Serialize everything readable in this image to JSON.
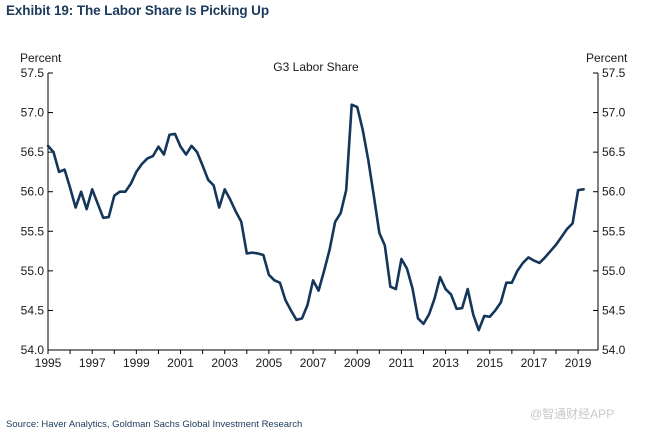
{
  "header": {
    "title": "Exhibit 19: The Labor Share Is Picking Up"
  },
  "footer": {
    "source": "Source: Haver Analytics, Goldman Sachs Global Investment Research",
    "watermark": "@智通财经APP"
  },
  "colors": {
    "line": "#14365a",
    "axis": "#000000",
    "title": "#1b3a5c"
  },
  "chart_data": {
    "type": "line",
    "title": "G3 Labor Share",
    "ylabel_left": "Percent",
    "ylabel_right": "Percent",
    "xlabel": "",
    "xlim": [
      1995,
      2019.9
    ],
    "ylim": [
      54.0,
      57.5
    ],
    "yticks": [
      54.0,
      54.5,
      55.0,
      55.5,
      56.0,
      56.5,
      57.0,
      57.5
    ],
    "ytick_labels": [
      "54.0",
      "54.5",
      "55.0",
      "55.5",
      "56.0",
      "56.5",
      "57.0",
      "57.5"
    ],
    "xticks": [
      1995,
      1997,
      1999,
      2001,
      2003,
      2005,
      2007,
      2009,
      2011,
      2013,
      2015,
      2017,
      2019
    ],
    "xtick_labels": [
      "1995",
      "1997",
      "1999",
      "2001",
      "2003",
      "2005",
      "2007",
      "2009",
      "2011",
      "2013",
      "2015",
      "2017",
      "2019"
    ],
    "grid": false,
    "series": [
      {
        "name": "G3 Labor Share",
        "x": [
          1995.0,
          1995.25,
          1995.5,
          1995.75,
          1996.0,
          1996.25,
          1996.5,
          1996.75,
          1997.0,
          1997.25,
          1997.5,
          1997.75,
          1998.0,
          1998.25,
          1998.5,
          1998.75,
          1999.0,
          1999.25,
          1999.5,
          1999.75,
          2000.0,
          2000.25,
          2000.5,
          2000.75,
          2001.0,
          2001.25,
          2001.5,
          2001.75,
          2002.0,
          2002.25,
          2002.5,
          2002.75,
          2003.0,
          2003.25,
          2003.5,
          2003.75,
          2004.0,
          2004.25,
          2004.5,
          2004.75,
          2005.0,
          2005.25,
          2005.5,
          2005.75,
          2006.0,
          2006.25,
          2006.5,
          2006.75,
          2007.0,
          2007.25,
          2007.5,
          2007.75,
          2008.0,
          2008.25,
          2008.5,
          2008.75,
          2009.0,
          2009.25,
          2009.5,
          2009.75,
          2010.0,
          2010.25,
          2010.5,
          2010.75,
          2011.0,
          2011.25,
          2011.5,
          2011.75,
          2012.0,
          2012.25,
          2012.5,
          2012.75,
          2013.0,
          2013.25,
          2013.5,
          2013.75,
          2014.0,
          2014.25,
          2014.5,
          2014.75,
          2015.0,
          2015.25,
          2015.5,
          2015.75,
          2016.0,
          2016.25,
          2016.5,
          2016.75,
          2017.0,
          2017.25,
          2017.5,
          2017.75,
          2018.0,
          2018.25,
          2018.5,
          2018.75,
          2019.0,
          2019.25
        ],
        "values": [
          56.58,
          56.5,
          56.25,
          56.28,
          56.05,
          55.8,
          56.0,
          55.78,
          56.03,
          55.85,
          55.67,
          55.68,
          55.95,
          56.0,
          56.0,
          56.1,
          56.25,
          56.35,
          56.42,
          56.45,
          56.57,
          56.47,
          56.72,
          56.73,
          56.57,
          56.47,
          56.58,
          56.5,
          56.33,
          56.15,
          56.08,
          55.8,
          56.03,
          55.9,
          55.75,
          55.62,
          55.22,
          55.23,
          55.22,
          55.2,
          54.95,
          54.88,
          54.85,
          54.63,
          54.5,
          54.38,
          54.4,
          54.57,
          54.88,
          54.75,
          55.0,
          55.27,
          55.62,
          55.73,
          56.02,
          57.1,
          57.07,
          56.78,
          56.4,
          55.95,
          55.48,
          55.32,
          54.8,
          54.77,
          55.15,
          55.03,
          54.78,
          54.4,
          54.33,
          54.45,
          54.65,
          54.92,
          54.77,
          54.7,
          54.52,
          54.53,
          54.77,
          54.45,
          54.25,
          54.43,
          54.42,
          54.5,
          54.6,
          54.85,
          54.85,
          55.0,
          55.1,
          55.17,
          55.13,
          55.1,
          55.17,
          55.25,
          55.33,
          55.43,
          55.53,
          55.6,
          56.02,
          56.03
        ]
      }
    ]
  }
}
